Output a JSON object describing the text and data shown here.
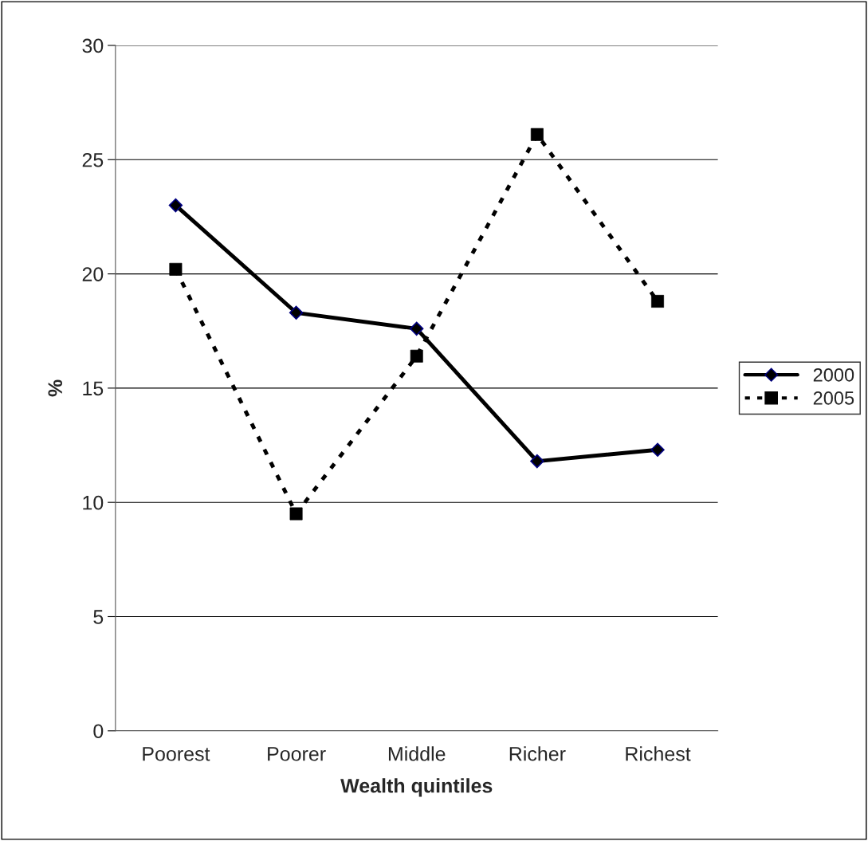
{
  "chart_data": {
    "type": "line",
    "xlabel": "Wealth quintiles",
    "ylabel": "%",
    "categories": [
      "Poorest",
      "Poorer",
      "Middle",
      "Richer",
      "Richest"
    ],
    "series": [
      {
        "name": "2000",
        "color": "#000000",
        "marker": "diamond",
        "line_style": "solid",
        "values": [
          23.0,
          18.3,
          17.6,
          11.8,
          12.3
        ]
      },
      {
        "name": "2005",
        "color": "#000000",
        "marker": "square",
        "line_style": "dotted",
        "values": [
          20.2,
          9.5,
          16.4,
          26.1,
          18.8
        ]
      }
    ],
    "ylim": [
      0,
      30
    ],
    "yticks": [
      0,
      5,
      10,
      15,
      20,
      25,
      30
    ],
    "grid": "y",
    "legend": "right"
  }
}
